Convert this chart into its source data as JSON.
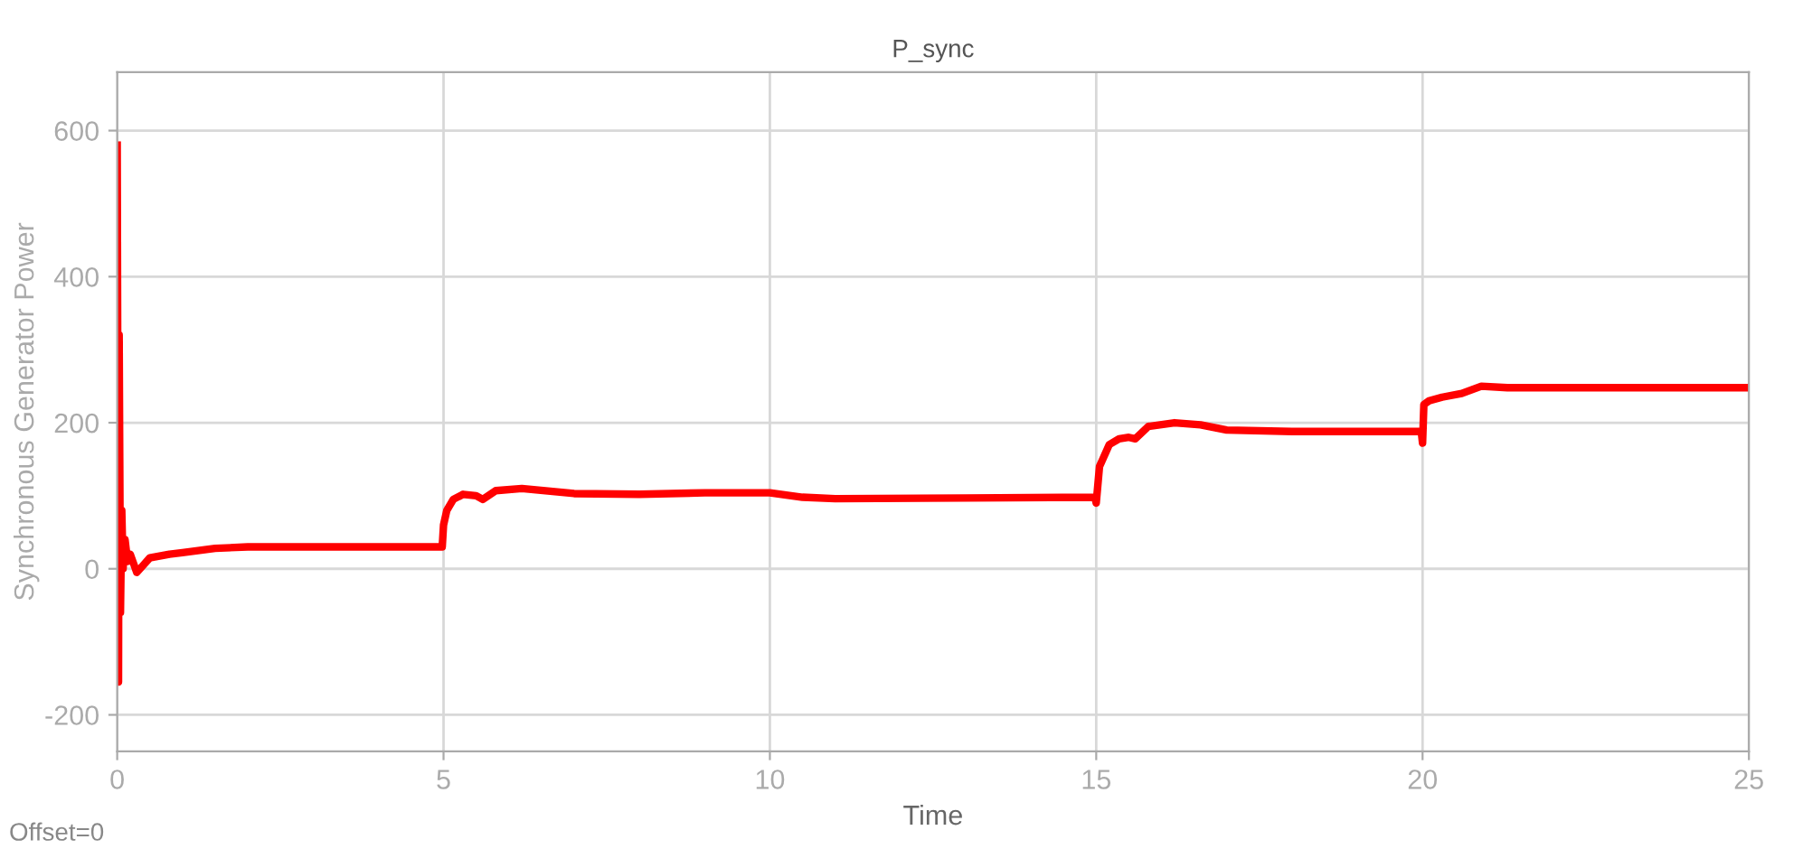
{
  "chart_data": {
    "type": "line",
    "title": "P_sync",
    "xlabel": "Time",
    "ylabel": "Synchronous Generator Power",
    "annotations": [
      "Offset=0"
    ],
    "xlim": [
      0,
      25
    ],
    "xticks": [
      0,
      5,
      10,
      15,
      20,
      25
    ],
    "ylim": [
      -250,
      680
    ],
    "yticks": [
      -200,
      0,
      200,
      400,
      600
    ],
    "grid": true,
    "line_style": "solid",
    "series": [
      {
        "color": "#ff0000",
        "x": [
          0,
          0.02,
          0.03,
          0.05,
          0.07,
          0.09,
          0.12,
          0.16,
          0.2,
          0.3,
          0.4,
          0.5,
          0.8,
          1.0,
          1.5,
          2.0,
          3.0,
          4.0,
          4.98,
          5.0,
          5.05,
          5.15,
          5.3,
          5.5,
          5.6,
          5.8,
          6.2,
          7.0,
          8.0,
          9.0,
          10.0,
          10.5,
          11.0,
          13.0,
          14.98,
          15.0,
          15.05,
          15.2,
          15.35,
          15.5,
          15.6,
          15.8,
          16.2,
          16.6,
          17.0,
          18.0,
          19.0,
          19.98,
          20.0,
          20.02,
          20.1,
          20.3,
          20.6,
          20.9,
          21.3,
          22.0,
          23.0,
          24.0,
          25.0
        ],
        "values": [
          580,
          -155,
          320,
          -60,
          80,
          0,
          40,
          10,
          20,
          -5,
          5,
          15,
          20,
          22,
          28,
          30,
          30,
          30,
          30,
          60,
          80,
          95,
          102,
          100,
          95,
          107,
          110,
          103,
          102,
          104,
          104,
          98,
          96,
          97,
          98,
          90,
          140,
          170,
          178,
          180,
          178,
          195,
          200,
          197,
          190,
          188,
          188,
          188,
          172,
          225,
          230,
          235,
          240,
          250,
          248,
          248,
          248,
          248,
          248
        ]
      }
    ]
  }
}
